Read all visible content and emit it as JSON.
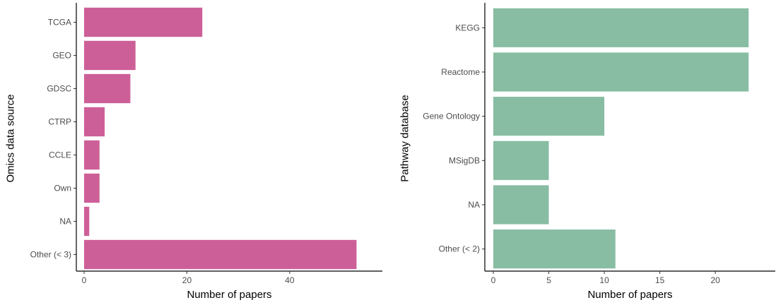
{
  "chart_data": [
    {
      "type": "bar",
      "orientation": "horizontal",
      "categories": [
        "TCGA",
        "GEO",
        "GDSC",
        "CTRP",
        "CCLE",
        "Own",
        "NA",
        "Other (< 3)"
      ],
      "values": [
        23,
        10,
        9,
        4,
        3,
        3,
        1,
        53
      ],
      "xlabel": "Number of papers",
      "ylabel": "Omics data source",
      "xticks": [
        0,
        20,
        40
      ],
      "xlim": [
        0,
        55
      ],
      "color": "#cd5f98",
      "grid": false
    },
    {
      "type": "bar",
      "orientation": "horizontal",
      "categories": [
        "KEGG",
        "Reactome",
        "Gene Ontology",
        "MSigDB",
        "NA",
        "Other (< 2)"
      ],
      "values": [
        23,
        23,
        10,
        5,
        5,
        11
      ],
      "xlabel": "Number of papers",
      "ylabel": "Pathway database",
      "xticks": [
        0,
        5,
        10,
        15,
        20
      ],
      "xlim": [
        0,
        24
      ],
      "color": "#88bda3",
      "grid": false
    }
  ]
}
